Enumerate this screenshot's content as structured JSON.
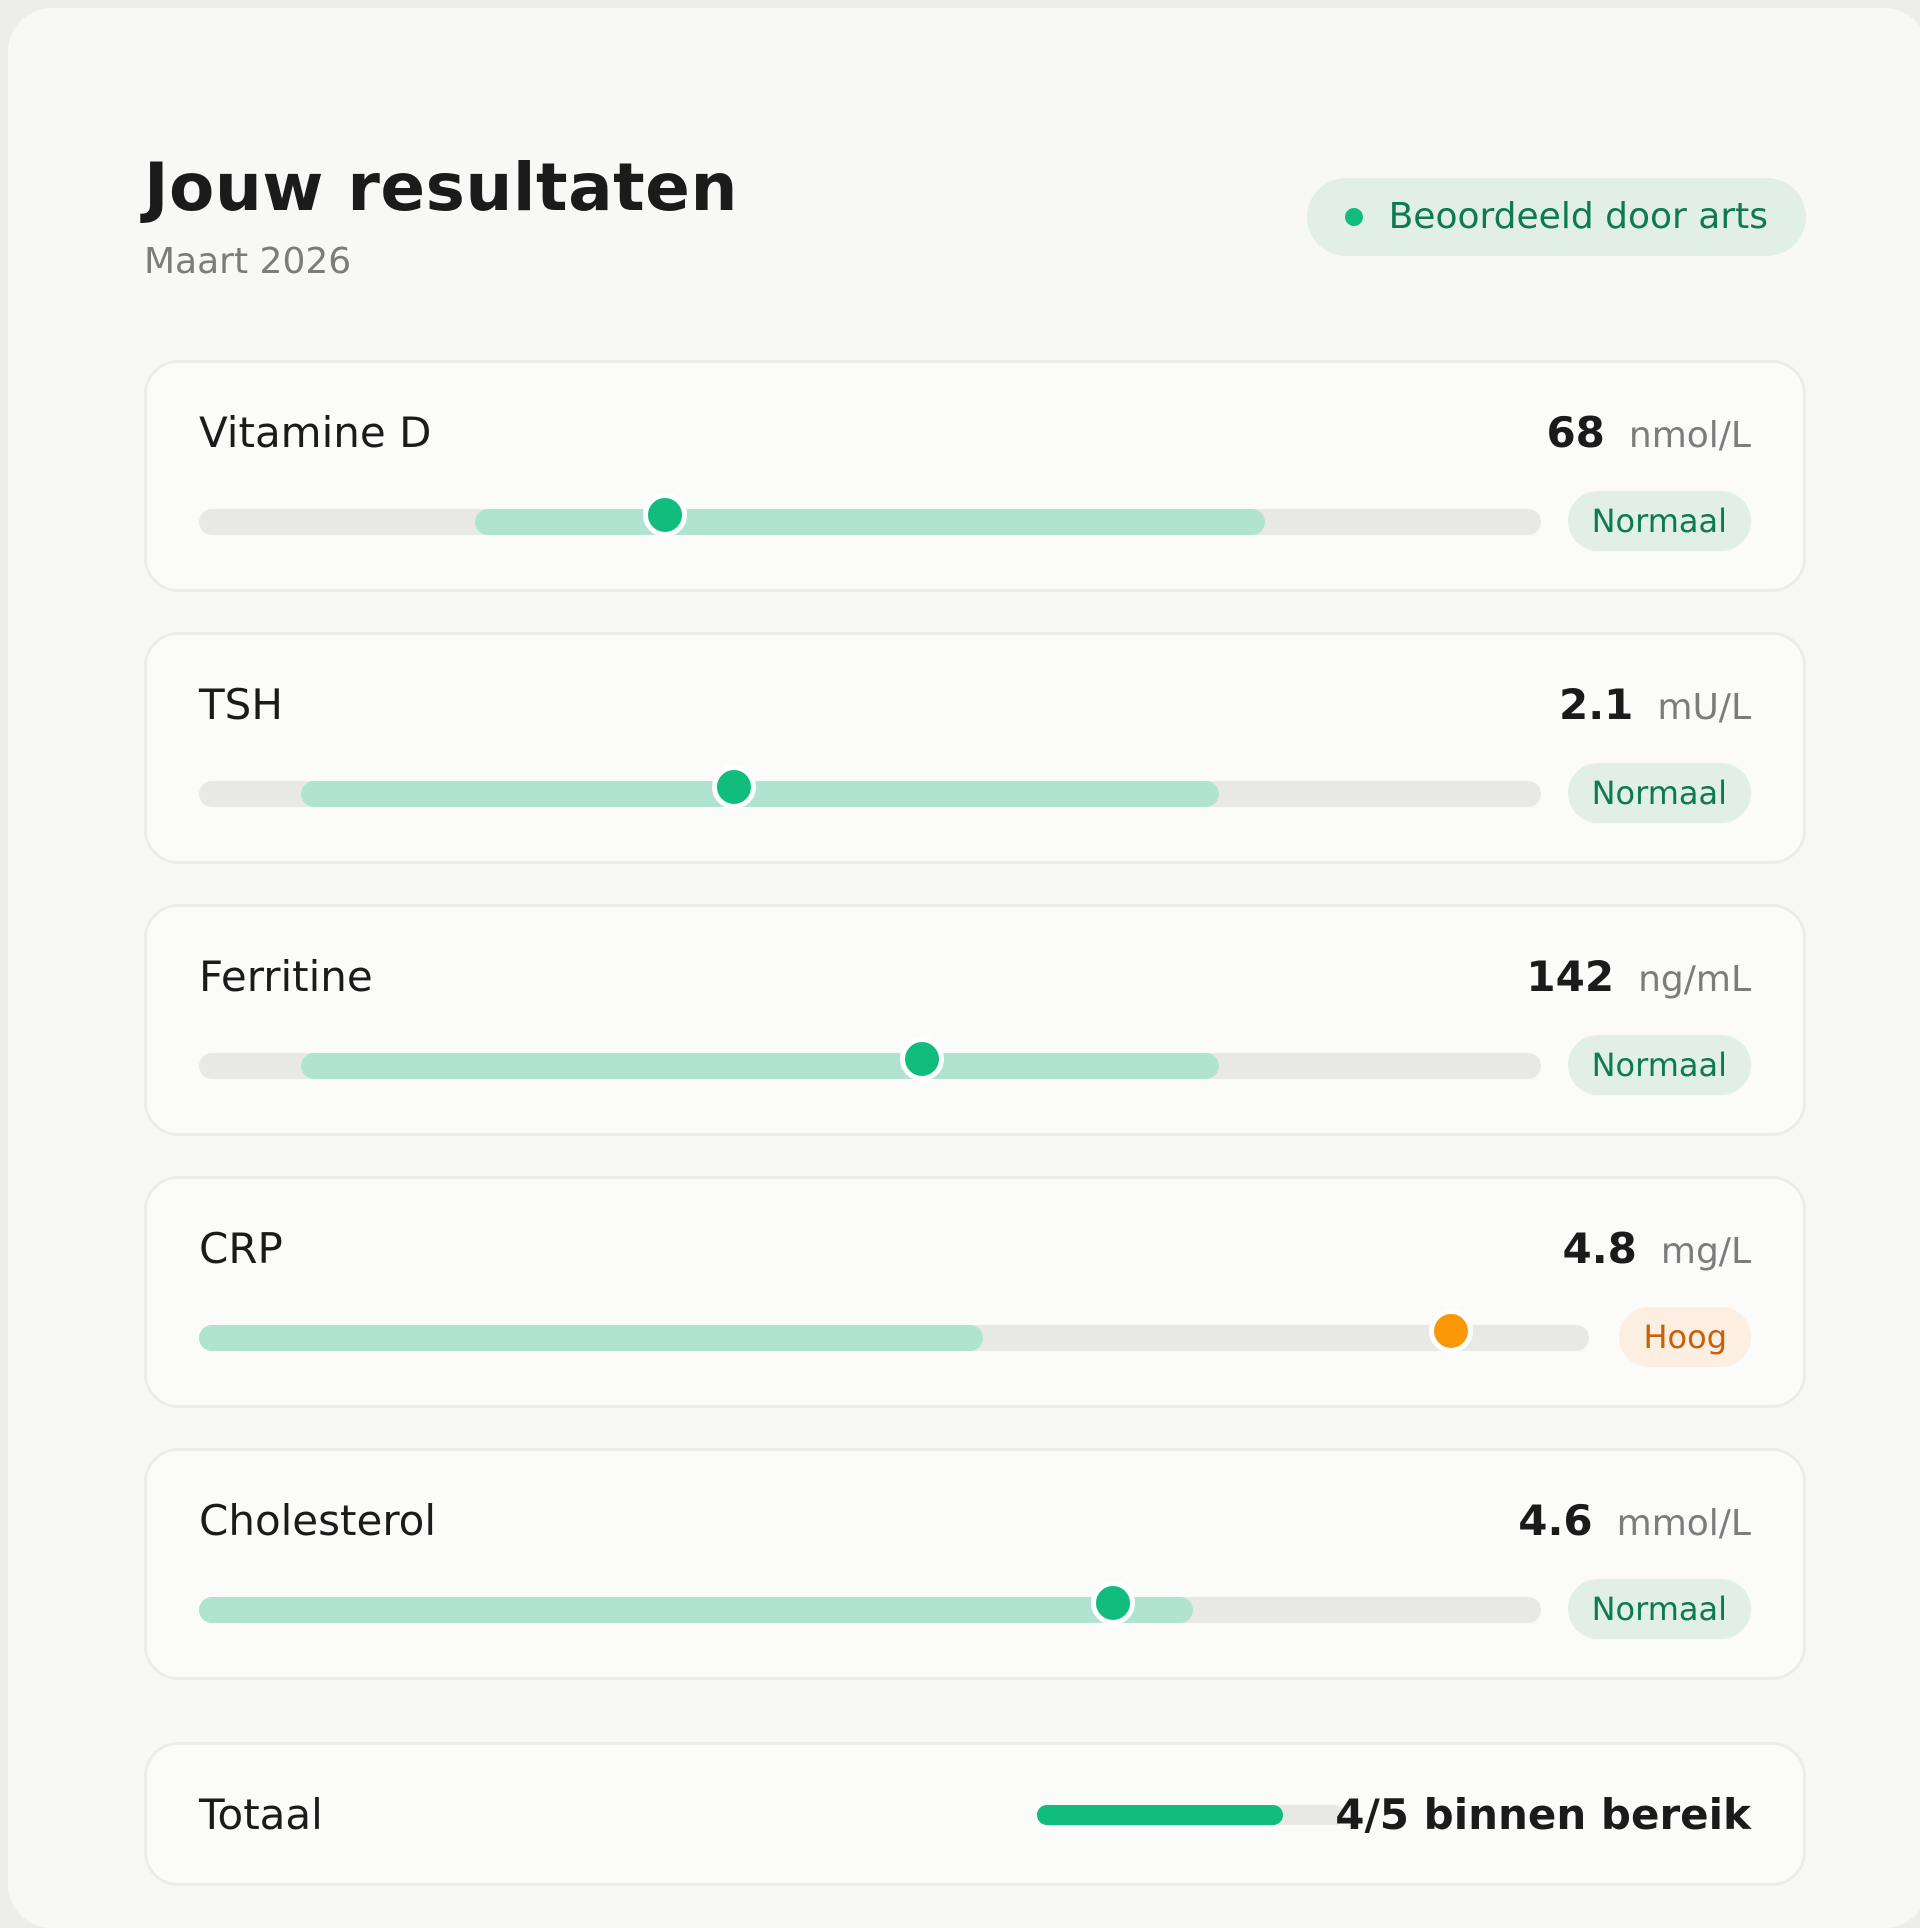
{
  "header": {
    "title": "Jouw resultaten",
    "subtitle": "Maart 2026",
    "reviewed_badge": "Beoordeeld door arts"
  },
  "colors": {
    "accent_green": "#10bd7d",
    "range_green": "#b0e4d0",
    "track_gray": "#e8e8e6",
    "high_orange": "#fb9808",
    "normal_badge_bg": "#e1efe7",
    "normal_badge_text": "#0e7a52",
    "high_badge_bg": "#fcefe2",
    "high_badge_text": "#c95f08"
  },
  "results": [
    {
      "name": "Vitamine D",
      "value": "68",
      "unit": "nmol/L",
      "status": "Normaal",
      "status_type": "normal",
      "reference_range_fraction": [
        0.206,
        0.794
      ],
      "value_fraction": 0.347
    },
    {
      "name": "TSH",
      "value": "2.1",
      "unit": "mU/L",
      "status": "Normaal",
      "status_type": "normal",
      "reference_range_fraction": [
        0.076,
        0.76
      ],
      "value_fraction": 0.399
    },
    {
      "name": "Ferritine",
      "value": "142",
      "unit": "ng/mL",
      "status": "Normaal",
      "status_type": "normal",
      "reference_range_fraction": [
        0.076,
        0.76
      ],
      "value_fraction": 0.539
    },
    {
      "name": "CRP",
      "value": "4.8",
      "unit": "mg/L",
      "status": "Hoog",
      "status_type": "high",
      "reference_range_fraction": [
        0.0,
        0.564
      ],
      "value_fraction": 0.901
    },
    {
      "name": "Cholesterol",
      "value": "4.6",
      "unit": "mmol/L",
      "status": "Normaal",
      "status_type": "normal",
      "reference_range_fraction": [
        0.0,
        0.741
      ],
      "value_fraction": 0.681
    }
  ],
  "total": {
    "label": "Totaal",
    "summary": "4/5 binnen bereik",
    "in_range": 4,
    "count": 5,
    "progress_fraction": 0.8
  }
}
